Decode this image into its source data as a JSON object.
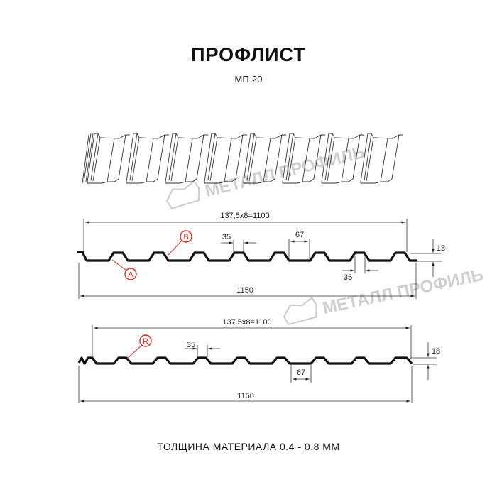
{
  "title": "ПРОФЛИСТ",
  "model": "МП-20",
  "footer": "ТОЛЩИНА МАТЕРИАЛА 0.4 - 0.8 ММ",
  "watermark": "МЕТАЛЛ ПРОФИЛЬ",
  "accent_color": "#e8201c",
  "profile_a": {
    "pitch_label": "137,5x8=1100",
    "total_label": "1150",
    "top_width_label": "35",
    "trough_label": "67",
    "bottom_width_label": "35",
    "height_label": "18",
    "marker_b": "B",
    "marker_a": "A"
  },
  "profile_b": {
    "pitch_label": "137.5x8=1100",
    "total_label": "1150",
    "top_width_label": "35",
    "trough_label": "67",
    "height_label": "18",
    "marker_r": "R"
  }
}
